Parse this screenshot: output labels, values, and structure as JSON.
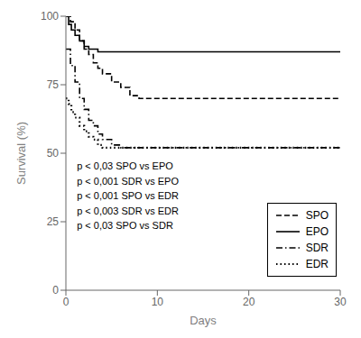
{
  "chart_data": {
    "type": "step",
    "xlabel": "Days",
    "ylabel": "Survival (%)",
    "xlim": [
      0,
      30
    ],
    "ylim": [
      0,
      100
    ],
    "xticks": [
      0,
      10,
      20,
      30
    ],
    "yticks": [
      0,
      25,
      50,
      75,
      100
    ],
    "grid": false,
    "legend": "lower right",
    "annotation": "p < 0,03 SPO vs EPO\np < 0,001 SDR vs EPO\np < 0,001 SPO vs EDR\np < 0,003 SDR vs EDR\np < 0,03 SPO vs SDR",
    "series": [
      {
        "name": "SPO",
        "color": "#000000",
        "line_style": "dashed",
        "x": [
          0,
          0.5,
          1.0,
          1.5,
          2.0,
          2.5,
          3.0,
          3.5,
          4.0,
          5.0,
          6.0,
          7.0,
          8.0,
          30
        ],
        "values": [
          100,
          98,
          95,
          91,
          88,
          86,
          83,
          81,
          79,
          76,
          74,
          71,
          70,
          70
        ]
      },
      {
        "name": "EPO",
        "color": "#000000",
        "line_style": "solid",
        "x": [
          0,
          0.3,
          0.6,
          1.0,
          1.5,
          2.0,
          2.5,
          3.5,
          30
        ],
        "values": [
          100,
          97,
          95,
          93,
          91,
          89,
          88,
          87,
          87
        ]
      },
      {
        "name": "SDR",
        "color": "#000000",
        "line_style": "dashdot",
        "x": [
          0,
          0.5,
          1.0,
          1.5,
          2.0,
          2.5,
          3.0,
          3.5,
          4.0,
          5.0,
          6.0,
          7.0,
          8.0,
          30
        ],
        "values": [
          88,
          82,
          76,
          70,
          66,
          62,
          60,
          57,
          55,
          53,
          52,
          52,
          52,
          52
        ]
      },
      {
        "name": "EDR",
        "color": "#000000",
        "line_style": "dotted",
        "x": [
          0,
          0.3,
          0.6,
          1.0,
          1.5,
          2.0,
          2.5,
          3.0,
          3.5,
          4.0,
          5.0,
          6.0,
          30
        ],
        "values": [
          70,
          68,
          65,
          63,
          60,
          58,
          56,
          55,
          53,
          52,
          52,
          52,
          52
        ]
      }
    ]
  }
}
